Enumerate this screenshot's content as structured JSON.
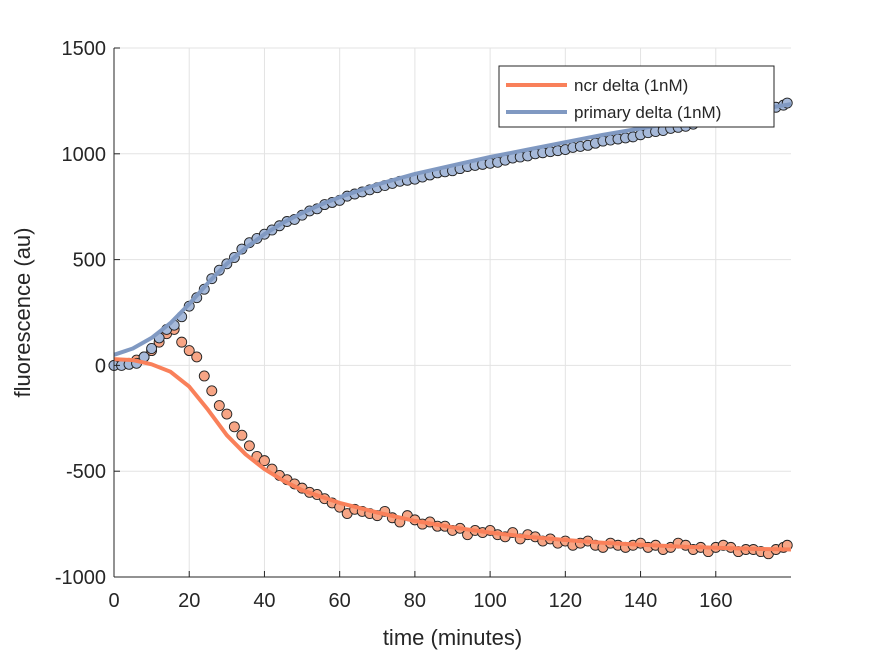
{
  "chart_data": {
    "type": "scatter",
    "title": "",
    "xlabel": "time (minutes)",
    "ylabel": "fluorescence (au)",
    "xlim": [
      0,
      180
    ],
    "ylim": [
      -1000,
      1500
    ],
    "xticks": [
      0,
      20,
      40,
      60,
      80,
      100,
      120,
      140,
      160
    ],
    "yticks": [
      -1000,
      -500,
      0,
      500,
      1000,
      1500
    ],
    "grid": true,
    "legend_position": "top-right",
    "series": [
      {
        "name": "ncr delta (1nM)",
        "color": "#f9805a",
        "marker_color": "#f7a585",
        "fit": {
          "x": [
            0,
            5,
            10,
            15,
            20,
            25,
            30,
            35,
            40,
            45,
            50,
            55,
            60,
            70,
            80,
            90,
            100,
            110,
            120,
            130,
            140,
            150,
            160,
            170,
            180
          ],
          "y": [
            30,
            25,
            5,
            -30,
            -100,
            -210,
            -330,
            -420,
            -490,
            -545,
            -590,
            -620,
            -650,
            -695,
            -735,
            -765,
            -790,
            -810,
            -825,
            -838,
            -848,
            -856,
            -862,
            -867,
            -870
          ]
        },
        "points": {
          "x": [
            0,
            2,
            4,
            6,
            8,
            10,
            12,
            14,
            16,
            18,
            20,
            22,
            24,
            26,
            28,
            30,
            32,
            34,
            36,
            38,
            40,
            42,
            44,
            46,
            48,
            50,
            52,
            54,
            56,
            58,
            60,
            62,
            64,
            66,
            68,
            70,
            72,
            74,
            76,
            78,
            80,
            82,
            84,
            86,
            88,
            90,
            92,
            94,
            96,
            98,
            100,
            102,
            104,
            106,
            108,
            110,
            112,
            114,
            116,
            118,
            120,
            122,
            124,
            126,
            128,
            130,
            132,
            134,
            136,
            138,
            140,
            142,
            144,
            146,
            148,
            150,
            152,
            154,
            156,
            158,
            160,
            162,
            164,
            166,
            168,
            170,
            172,
            174,
            176,
            178,
            179
          ],
          "y": [
            0,
            5,
            10,
            25,
            40,
            70,
            110,
            150,
            170,
            110,
            70,
            40,
            -50,
            -120,
            -190,
            -230,
            -290,
            -330,
            -380,
            -430,
            -450,
            -490,
            -520,
            -540,
            -560,
            -580,
            -600,
            -610,
            -630,
            -650,
            -670,
            -700,
            -680,
            -690,
            -700,
            -710,
            -690,
            -720,
            -740,
            -710,
            -730,
            -750,
            -740,
            -760,
            -760,
            -780,
            -770,
            -800,
            -780,
            -790,
            -780,
            -800,
            -810,
            -790,
            -820,
            -800,
            -810,
            -830,
            -820,
            -840,
            -830,
            -850,
            -840,
            -830,
            -850,
            -860,
            -840,
            -850,
            -860,
            -850,
            -840,
            -860,
            -850,
            -870,
            -860,
            -840,
            -850,
            -870,
            -860,
            -880,
            -860,
            -850,
            -860,
            -880,
            -870,
            -870,
            -880,
            -890,
            -870,
            -860,
            -850
          ]
        }
      },
      {
        "name": "primary delta (1nM)",
        "color": "#8099c2",
        "marker_color": "#a6b9d9",
        "fit": {
          "x": [
            0,
            5,
            10,
            15,
            20,
            25,
            30,
            35,
            40,
            45,
            50,
            55,
            60,
            70,
            80,
            90,
            100,
            110,
            120,
            130,
            140,
            150,
            160,
            170,
            180
          ],
          "y": [
            50,
            80,
            130,
            200,
            290,
            390,
            480,
            555,
            620,
            675,
            720,
            760,
            795,
            855,
            905,
            945,
            985,
            1020,
            1055,
            1090,
            1120,
            1150,
            1180,
            1205,
            1235
          ]
        },
        "points": {
          "x": [
            0,
            2,
            4,
            6,
            8,
            10,
            12,
            14,
            16,
            18,
            20,
            22,
            24,
            26,
            28,
            30,
            32,
            34,
            36,
            38,
            40,
            42,
            44,
            46,
            48,
            50,
            52,
            54,
            56,
            58,
            60,
            62,
            64,
            66,
            68,
            70,
            72,
            74,
            76,
            78,
            80,
            82,
            84,
            86,
            88,
            90,
            92,
            94,
            96,
            98,
            100,
            102,
            104,
            106,
            108,
            110,
            112,
            114,
            116,
            118,
            120,
            122,
            124,
            126,
            128,
            130,
            132,
            134,
            136,
            138,
            140,
            142,
            144,
            146,
            148,
            150,
            152,
            154,
            156,
            158,
            160,
            162,
            164,
            166,
            168,
            170,
            172,
            174,
            176,
            178,
            179
          ],
          "y": [
            0,
            0,
            5,
            10,
            40,
            80,
            130,
            170,
            190,
            230,
            280,
            320,
            360,
            410,
            450,
            480,
            510,
            550,
            580,
            600,
            620,
            640,
            660,
            680,
            690,
            710,
            730,
            740,
            760,
            770,
            780,
            800,
            810,
            820,
            830,
            840,
            850,
            860,
            870,
            875,
            880,
            890,
            900,
            910,
            915,
            920,
            930,
            940,
            945,
            950,
            955,
            960,
            970,
            980,
            985,
            990,
            1000,
            1005,
            1010,
            1015,
            1020,
            1030,
            1035,
            1040,
            1050,
            1060,
            1065,
            1070,
            1075,
            1080,
            1090,
            1100,
            1105,
            1110,
            1120,
            1125,
            1130,
            1140,
            1150,
            1155,
            1160,
            1165,
            1170,
            1180,
            1190,
            1195,
            1200,
            1210,
            1220,
            1230,
            1240
          ]
        }
      }
    ]
  }
}
